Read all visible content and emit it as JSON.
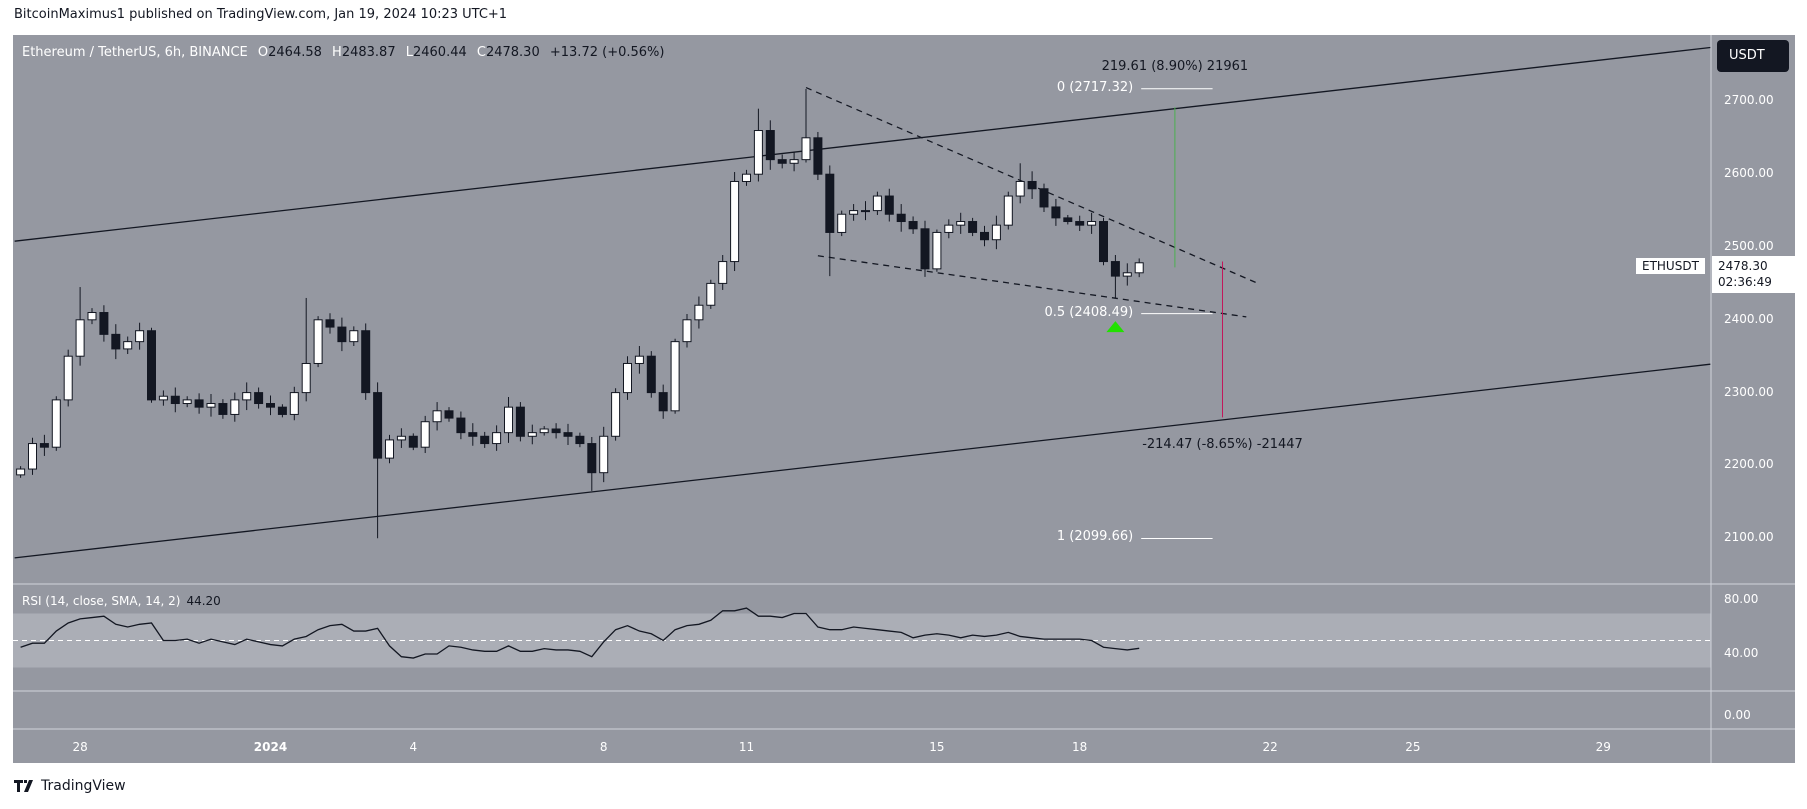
{
  "header": {
    "published": "BitcoinMaximus1 published on TradingView.com, Jan 19, 2024 10:23 UTC+1"
  },
  "legend": {
    "symbol": "Ethereum / TetherUS, 6h, BINANCE",
    "o_label": "O",
    "o": "2464.58",
    "h_label": "H",
    "h": "2483.87",
    "l_label": "L",
    "l": "2460.44",
    "c_label": "C",
    "c": "2478.30",
    "change": "+13.72 (+0.56%)"
  },
  "currency_button": "USDT",
  "last_price": {
    "symbol": "ETHUSDT",
    "price": "2478.30",
    "countdown": "02:36:49"
  },
  "rsi_legend": {
    "label": "RSI (14, close, SMA, 14, 2)",
    "value": "44.20"
  },
  "logo": {
    "text": "TradingView"
  },
  "colors": {
    "pane_bg": "#9598a1",
    "band": "#abaeb6",
    "up": "#ffffff",
    "down": "#131722",
    "triangle": "#22e000",
    "measure_up": "#4caf50",
    "measure_down": "#c2185b"
  },
  "chart_data": [
    {
      "type": "candlestick",
      "title": "Ethereum / TetherUS, 6h, BINANCE",
      "start": "2023-12-26 18:00",
      "interval_hours": 6,
      "close": [
        2195,
        2230,
        2225,
        2290,
        2350,
        2400,
        2410,
        2380,
        2360,
        2370,
        2385,
        2290,
        2295,
        2285,
        2290,
        2280,
        2285,
        2270,
        2290,
        2300,
        2285,
        2280,
        2270,
        2300,
        2340,
        2400,
        2390,
        2370,
        2385,
        2300,
        2210,
        2235,
        2240,
        2225,
        2260,
        2275,
        2265,
        2245,
        2240,
        2230,
        2245,
        2280,
        2240,
        2245,
        2250,
        2245,
        2240,
        2230,
        2190,
        2240,
        2300,
        2340,
        2350,
        2300,
        2275,
        2370,
        2400,
        2420,
        2450,
        2480,
        2590,
        2600,
        2660,
        2620,
        2615,
        2620,
        2650,
        2600,
        2520,
        2545,
        2550,
        2550,
        2570,
        2545,
        2535,
        2525,
        2470,
        2520,
        2530,
        2535,
        2520,
        2510,
        2530,
        2570,
        2590,
        2580,
        2555,
        2540,
        2535,
        2530,
        2535,
        2480,
        2460,
        2464.58,
        2478.3
      ],
      "extremes": [
        {
          "i": 5,
          "h": 2445
        },
        {
          "i": 24,
          "h": 2430
        },
        {
          "i": 30,
          "l": 2100
        },
        {
          "i": 48,
          "l": 2165
        },
        {
          "i": 62,
          "h": 2690
        },
        {
          "i": 66,
          "h": 2717
        },
        {
          "i": 68,
          "l": 2460
        },
        {
          "i": 84,
          "h": 2615
        },
        {
          "i": 92,
          "l": 2430
        }
      ],
      "y_ticks": [
        "2700.00",
        "2600.00",
        "2500.00",
        "2400.00",
        "2300.00",
        "2200.00",
        "2100.00"
      ],
      "x_ticks": [
        {
          "label": "28",
          "date": "2023-12-28 00:00"
        },
        {
          "label": "2024",
          "date": "2024-01-01 00:00",
          "bold": true
        },
        {
          "label": "4",
          "date": "2024-01-04 00:00"
        },
        {
          "label": "8",
          "date": "2024-01-08 00:00"
        },
        {
          "label": "11",
          "date": "2024-01-11 00:00"
        },
        {
          "label": "15",
          "date": "2024-01-15 00:00"
        },
        {
          "label": "18",
          "date": "2024-01-18 00:00"
        },
        {
          "label": "22",
          "date": "2024-01-22 00:00"
        },
        {
          "label": "25",
          "date": "2024-01-25 00:00"
        },
        {
          "label": "29",
          "date": "2024-01-29 00:00"
        }
      ],
      "drawings": {
        "channel_upper": [
          [
            "2023-12-26 15:00",
            2508
          ],
          [
            "2024-01-31 06:00",
            2774
          ]
        ],
        "channel_lower": [
          [
            "2023-12-26 15:00",
            2073
          ],
          [
            "2024-01-31 06:00",
            2339
          ]
        ],
        "wedge_upper": [
          [
            "2024-01-12 06:00",
            2719
          ],
          [
            "2024-01-21 17:00",
            2451
          ]
        ],
        "wedge_lower": [
          [
            "2024-01-12 12:00",
            2488
          ],
          [
            "2024-01-21 12:00",
            2404
          ]
        ],
        "fib": [
          {
            "label": "0 (2717.32)",
            "price": 2717.32
          },
          {
            "label": "0.5 (2408.49)",
            "price": 2408.49
          },
          {
            "label": "1 (2099.66)",
            "price": 2099.66
          }
        ],
        "fib_range": [
          "2024-01-19 07:00",
          "2024-01-20 19:00"
        ],
        "measure_up": {
          "label": "219.61 (8.90%) 21961",
          "date": "2024-01-20 00:00",
          "from": 2472,
          "to": 2692
        },
        "measure_down": {
          "label": "-214.47 (-8.65%) -21447",
          "date": "2024-01-21 00:00",
          "from": 2480,
          "to": 2266
        },
        "triangle": {
          "date": "2024-01-18 18:00",
          "price": 2390
        }
      }
    },
    {
      "type": "line",
      "title": "RSI (14, close, SMA, 14, 2)",
      "y_ticks": [
        "80.00",
        "40.00",
        "0.00"
      ],
      "band": [
        30,
        70
      ],
      "midline": 50,
      "values": [
        45,
        48,
        48,
        57,
        63,
        66,
        67,
        68,
        62,
        60,
        62,
        63,
        50,
        50,
        51,
        48,
        51,
        49,
        47,
        51,
        49,
        47,
        46,
        51,
        53,
        58,
        61,
        62,
        57,
        57,
        59,
        46,
        38,
        37,
        40,
        40,
        46,
        45,
        43,
        42,
        42,
        46,
        42,
        42,
        44,
        43,
        43,
        42,
        38,
        49,
        58,
        61,
        57,
        55,
        50,
        58,
        61,
        62,
        65,
        72,
        72,
        74,
        68,
        68,
        67,
        70,
        70,
        60,
        58,
        58,
        60,
        59,
        58,
        57,
        56,
        52,
        54,
        55,
        54,
        52,
        54,
        53,
        54,
        56,
        53,
        52,
        51,
        51,
        51,
        51,
        50,
        45,
        44,
        43,
        44.2
      ]
    }
  ]
}
